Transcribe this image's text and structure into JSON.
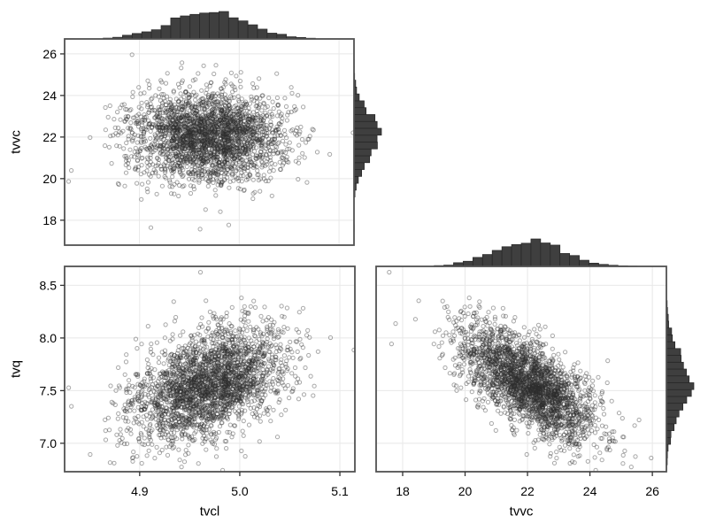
{
  "chart_data": {
    "type": "scatter",
    "subtype": "pairs-matrix-with-marginal-histograms",
    "title": "",
    "seed": 1337,
    "n_points": 2600,
    "distribution": "gaussian",
    "variables": [
      {
        "name": "tvcl",
        "mean": 4.968,
        "sd": 0.038
      },
      {
        "name": "tvvc",
        "mean": 22.05,
        "sd": 1.07
      },
      {
        "name": "tvq",
        "mean": 7.56,
        "sd": 0.275
      }
    ],
    "correlations": {
      "tvcl_tvvc": -0.05,
      "tvcl_tvq": 0.45,
      "tvvc_tvq": -0.66
    },
    "panels": [
      {
        "position": "top-left",
        "x_var": "tvcl",
        "y_var": "tvvc",
        "xlabel": "",
        "ylabel": "tvvc",
        "xlim": [
          4.825,
          5.115
        ],
        "ylim": [
          16.8,
          26.72
        ],
        "xticks": [
          4.9,
          5.0,
          5.1
        ],
        "xtick_labels": [
          "4.9",
          "5.0",
          "5.1"
        ],
        "yticks": [
          18,
          20,
          22,
          24,
          26
        ],
        "ytick_labels": [
          "18",
          "20",
          "22",
          "24",
          "26"
        ],
        "show_x_tick_labels": false,
        "show_y_tick_labels": true,
        "marginal_top": true,
        "marginal_right": true
      },
      {
        "position": "bottom-left",
        "x_var": "tvcl",
        "y_var": "tvq",
        "xlabel": "tvcl",
        "ylabel": "tvq",
        "xlim": [
          4.825,
          5.115
        ],
        "ylim": [
          6.73,
          8.68
        ],
        "xticks": [
          4.9,
          5.0,
          5.1
        ],
        "xtick_labels": [
          "4.9",
          "5.0",
          "5.1"
        ],
        "yticks": [
          7.0,
          7.5,
          8.0,
          8.5
        ],
        "ytick_labels": [
          "7.0",
          "7.5",
          "8.0",
          "8.5"
        ],
        "show_x_tick_labels": true,
        "show_y_tick_labels": true,
        "marginal_top": false,
        "marginal_right": false
      },
      {
        "position": "bottom-right",
        "x_var": "tvvc",
        "y_var": "tvq",
        "xlabel": "tvvc",
        "ylabel": "",
        "xlim": [
          17.15,
          26.45
        ],
        "ylim": [
          6.73,
          8.68
        ],
        "xticks": [
          18,
          20,
          22,
          24,
          26
        ],
        "xtick_labels": [
          "18",
          "20",
          "22",
          "24",
          "26"
        ],
        "yticks": [
          7.0,
          7.5,
          8.0,
          8.5
        ],
        "ytick_labels": [
          "7.0",
          "7.5",
          "8.0",
          "8.5"
        ],
        "show_x_tick_labels": true,
        "show_y_tick_labels": false,
        "marginal_top": true,
        "marginal_right": true
      }
    ],
    "grid": true,
    "legend": false
  },
  "style": {
    "background": "#ffffff",
    "panel_fill": "#ffffff",
    "panel_border_color": "#525252",
    "grid_color": "#e8e8e8",
    "point_color": "#2e2e2e",
    "point_opacity": 0.42,
    "hist_fill": "#3f3f3f",
    "hist_border": "#262626",
    "tick_color": "#333333",
    "text_color": "#000000"
  }
}
